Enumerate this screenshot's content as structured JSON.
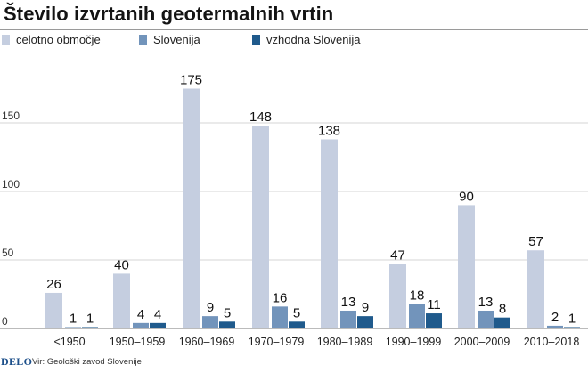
{
  "chart_data": {
    "type": "bar",
    "title": "Število izvrtanih geotermalnih vrtin",
    "categories": [
      "<1950",
      "1950–1959",
      "1960–1969",
      "1970–1979",
      "1980–1989",
      "1990–1999",
      "2000–2009",
      "2010–2018"
    ],
    "series": [
      {
        "name": "celotno območje",
        "color": "#c5cee0",
        "values": [
          26,
          40,
          175,
          148,
          138,
          47,
          90,
          57
        ]
      },
      {
        "name": "Slovenija",
        "color": "#7294bb",
        "values": [
          1,
          4,
          9,
          16,
          13,
          18,
          13,
          2
        ]
      },
      {
        "name": "vzhodna Slovenija",
        "color": "#1f5a8c",
        "values": [
          1,
          4,
          5,
          5,
          9,
          11,
          8,
          1
        ]
      }
    ],
    "y_ticks": [
      0,
      50,
      100,
      150
    ],
    "ylim": [
      0,
      200
    ],
    "grid": true,
    "legend_position": "top-left",
    "xlabel": "",
    "ylabel": ""
  },
  "footer": {
    "brand": "DELO",
    "source": "Vir: Geološki zavod Slovenije"
  }
}
